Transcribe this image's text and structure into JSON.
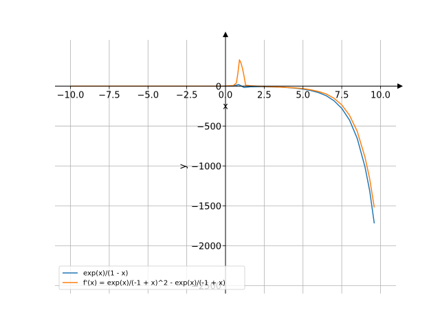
{
  "chart_data": {
    "type": "line",
    "title": "",
    "xlabel": "x",
    "ylabel": "y",
    "xlim": [
      -11.0,
      11.0
    ],
    "ylim": [
      -2600,
      580
    ],
    "xticks": [
      -10.0,
      -7.5,
      -5.0,
      -2.5,
      0.0,
      2.5,
      5.0,
      7.5,
      10.0
    ],
    "xtick_labels": [
      "−10.0",
      "−7.5",
      "−5.0",
      "−2.5",
      "0.0",
      "2.5",
      "5.0",
      "7.5",
      "10.0"
    ],
    "yticks": [
      0,
      -500,
      -1000,
      -1500,
      -2000,
      -2500
    ],
    "ytick_labels": [
      "0",
      "−500",
      "−1000",
      "−1500",
      "−2000",
      "−2500"
    ],
    "grid": true,
    "legend_position": "lower-left",
    "colors": {
      "series1": "#1f77b4",
      "series2": "#ff7f0e"
    },
    "series": [
      {
        "name": "exp(x)/(1 - x)",
        "color": "#1f77b4",
        "x": [
          -10,
          -8,
          -6,
          -4,
          -2,
          0,
          0.5,
          0.85,
          1.2,
          1.6,
          2,
          2.5,
          3,
          3.5,
          4,
          4.5,
          5,
          5.5,
          6,
          6.5,
          7,
          7.5,
          8,
          8.5,
          9,
          9.3,
          9.6
        ],
        "y": [
          0,
          0,
          0,
          0.01,
          0.05,
          1,
          3,
          20,
          -17,
          -8,
          -7,
          -8,
          -10,
          -13,
          -18,
          -26,
          -37,
          -54,
          -81,
          -120,
          -183,
          -278,
          -426,
          -655,
          -1013,
          -1310,
          -1720
        ]
      },
      {
        "name": "f'(x) = exp(x)/(-1 + x)^2 - exp(x)/(-1 + x)",
        "color": "#ff7f0e",
        "x": [
          -10,
          -8,
          -6,
          -4,
          -2,
          0,
          0.5,
          0.7,
          0.8,
          0.9,
          1.0,
          1.1,
          1.2,
          1.3,
          1.6,
          2,
          2.5,
          3,
          3.5,
          4,
          4.5,
          5,
          5.5,
          6,
          6.5,
          7,
          7.5,
          8,
          8.5,
          9,
          9.3,
          9.6
        ],
        "y": [
          0,
          0,
          0,
          0,
          0.1,
          2,
          8,
          40,
          160,
          330,
          290,
          220,
          120,
          10,
          4,
          0,
          -4,
          -7,
          -11,
          -16,
          -22,
          -31,
          -46,
          -67,
          -98,
          -152,
          -235,
          -365,
          -566,
          -890,
          -1160,
          -1520
        ]
      }
    ]
  }
}
